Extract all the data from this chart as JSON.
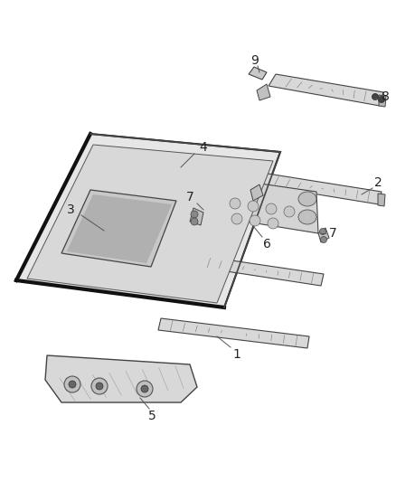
{
  "background_color": "#ffffff",
  "fig_width": 4.38,
  "fig_height": 5.33,
  "dpi": 100,
  "line_color": "#555555",
  "part_fill": "#e8e8e8",
  "part_stroke": "#444444",
  "rail_fill": "#d8d8d8",
  "rail_dark": "#aaaaaa",
  "clip_fill": "#cccccc",
  "hole_fill": "#bbbbbb"
}
